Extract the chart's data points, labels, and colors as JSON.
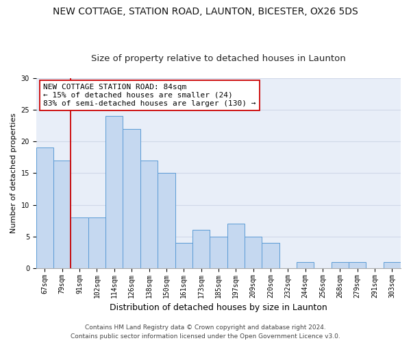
{
  "title": "NEW COTTAGE, STATION ROAD, LAUNTON, BICESTER, OX26 5DS",
  "subtitle": "Size of property relative to detached houses in Launton",
  "xlabel": "Distribution of detached houses by size in Launton",
  "ylabel": "Number of detached properties",
  "categories": [
    "67sqm",
    "79sqm",
    "91sqm",
    "102sqm",
    "114sqm",
    "126sqm",
    "138sqm",
    "150sqm",
    "161sqm",
    "173sqm",
    "185sqm",
    "197sqm",
    "209sqm",
    "220sqm",
    "232sqm",
    "244sqm",
    "256sqm",
    "268sqm",
    "279sqm",
    "291sqm",
    "303sqm"
  ],
  "values": [
    19,
    17,
    8,
    8,
    24,
    22,
    17,
    15,
    4,
    6,
    5,
    7,
    5,
    4,
    0,
    1,
    0,
    1,
    1,
    0,
    1
  ],
  "bar_color": "#c5d8f0",
  "bar_edge_color": "#5b9bd5",
  "red_line_x": 1.5,
  "highlight_color": "#cc0000",
  "annotation_text": "NEW COTTAGE STATION ROAD: 84sqm\n← 15% of detached houses are smaller (24)\n83% of semi-detached houses are larger (130) →",
  "annotation_box_color": "#ffffff",
  "annotation_box_edge": "#cc0000",
  "ylim": [
    0,
    30
  ],
  "yticks": [
    0,
    5,
    10,
    15,
    20,
    25,
    30
  ],
  "grid_color": "#d0d8e8",
  "background_color": "#e8eef8",
  "footer_line1": "Contains HM Land Registry data © Crown copyright and database right 2024.",
  "footer_line2": "Contains public sector information licensed under the Open Government Licence v3.0.",
  "title_fontsize": 10,
  "subtitle_fontsize": 9.5,
  "xlabel_fontsize": 9,
  "ylabel_fontsize": 8,
  "tick_fontsize": 7,
  "annotation_fontsize": 8,
  "footer_fontsize": 6.5
}
